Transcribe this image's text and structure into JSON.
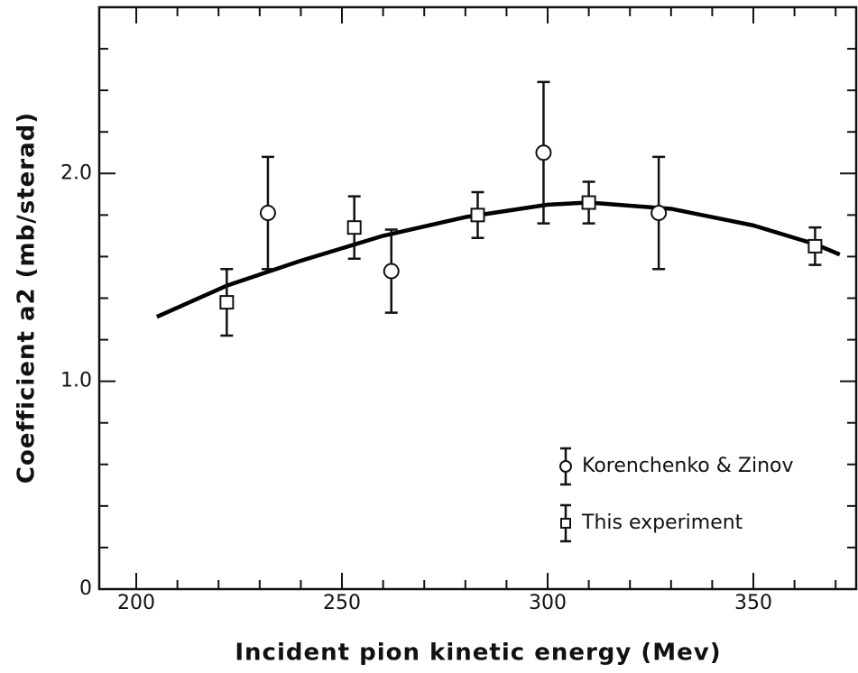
{
  "chart_data": {
    "type": "scatter",
    "x_label": "Incident pion kinetic energy (Mev)",
    "y_label": "Coefficient a2 (mb/sterad)",
    "xlim": [
      191,
      375
    ],
    "ylim": [
      0,
      2.8
    ],
    "xticks": [
      200,
      250,
      300,
      350
    ],
    "xminorticks": [
      210,
      220,
      230,
      240,
      260,
      270,
      280,
      290,
      310,
      320,
      330,
      340,
      360,
      370
    ],
    "yticks": [
      0,
      {
        "value": 1.0,
        "label": "1.0"
      },
      {
        "value": 2.0,
        "label": "2.0"
      }
    ],
    "yminorticks": [
      0.2,
      0.4,
      0.6,
      0.8,
      1.2,
      1.4,
      1.6,
      1.8,
      2.2,
      2.4,
      2.6
    ],
    "legend": "lower right",
    "series": [
      {
        "name": "Korenchenko & Zinov",
        "marker": "circle",
        "color": "#111111",
        "x": [
          232,
          262,
          299,
          327
        ],
        "values": [
          1.81,
          1.53,
          2.1,
          1.81
        ],
        "errors": [
          0.27,
          0.2,
          0.34,
          0.27
        ]
      },
      {
        "name": "This experiment",
        "marker": "square",
        "color": "#111111",
        "x": [
          222,
          253,
          283,
          310,
          365
        ],
        "values": [
          1.38,
          1.74,
          1.8,
          1.86,
          1.65
        ],
        "errors": [
          0.16,
          0.15,
          0.11,
          0.1,
          0.09
        ]
      }
    ],
    "curve": {
      "color": "#000000",
      "x": [
        205,
        222,
        240,
        260,
        280,
        300,
        310,
        330,
        350,
        365,
        371
      ],
      "values": [
        1.31,
        1.46,
        1.58,
        1.7,
        1.79,
        1.85,
        1.86,
        1.83,
        1.75,
        1.66,
        1.61
      ]
    }
  }
}
